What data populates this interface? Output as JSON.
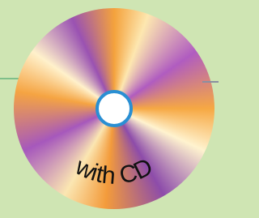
{
  "label": "with CD"
}
